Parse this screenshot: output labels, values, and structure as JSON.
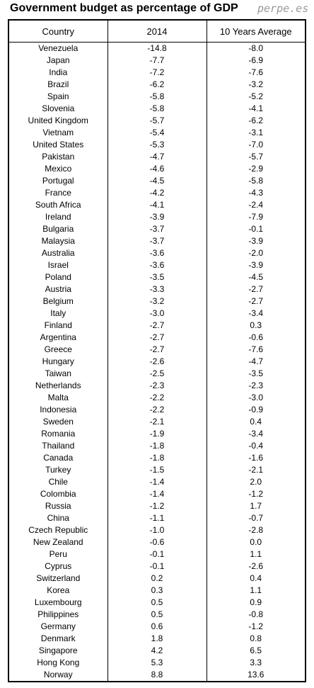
{
  "header": {
    "title": "Government budget as percentage of GDP",
    "watermark": "perpe.es"
  },
  "table": {
    "columns": [
      "Country",
      "2014",
      "10 Years Average"
    ],
    "rows": [
      [
        "Venezuela",
        "-14.8",
        "-8.0"
      ],
      [
        "Japan",
        "-7.7",
        "-6.9"
      ],
      [
        "India",
        "-7.2",
        "-7.6"
      ],
      [
        "Brazil",
        "-6.2",
        "-3.2"
      ],
      [
        "Spain",
        "-5.8",
        "-5.2"
      ],
      [
        "Slovenia",
        "-5.8",
        "-4.1"
      ],
      [
        "United Kingdom",
        "-5.7",
        "-6.2"
      ],
      [
        "Vietnam",
        "-5.4",
        "-3.1"
      ],
      [
        "United States",
        "-5.3",
        "-7.0"
      ],
      [
        "Pakistan",
        "-4.7",
        "-5.7"
      ],
      [
        "Mexico",
        "-4.6",
        "-2.9"
      ],
      [
        "Portugal",
        "-4.5",
        "-5.8"
      ],
      [
        "France",
        "-4.2",
        "-4.3"
      ],
      [
        "South Africa",
        "-4.1",
        "-2.4"
      ],
      [
        "Ireland",
        "-3.9",
        "-7.9"
      ],
      [
        "Bulgaria",
        "-3.7",
        "-0.1"
      ],
      [
        "Malaysia",
        "-3.7",
        "-3.9"
      ],
      [
        "Australia",
        "-3.6",
        "-2.0"
      ],
      [
        "Israel",
        "-3.6",
        "-3.9"
      ],
      [
        "Poland",
        "-3.5",
        "-4.5"
      ],
      [
        "Austria",
        "-3.3",
        "-2.7"
      ],
      [
        "Belgium",
        "-3.2",
        "-2.7"
      ],
      [
        "Italy",
        "-3.0",
        "-3.4"
      ],
      [
        "Finland",
        "-2.7",
        "0.3"
      ],
      [
        "Argentina",
        "-2.7",
        "-0.6"
      ],
      [
        "Greece",
        "-2.7",
        "-7.6"
      ],
      [
        "Hungary",
        "-2.6",
        "-4.7"
      ],
      [
        "Taiwan",
        "-2.5",
        "-3.5"
      ],
      [
        "Netherlands",
        "-2.3",
        "-2.3"
      ],
      [
        "Malta",
        "-2.2",
        "-3.0"
      ],
      [
        "Indonesia",
        "-2.2",
        "-0.9"
      ],
      [
        "Sweden",
        "-2.1",
        "0.4"
      ],
      [
        "Romania",
        "-1.9",
        "-3.4"
      ],
      [
        "Thailand",
        "-1.8",
        "-0.4"
      ],
      [
        "Canada",
        "-1.8",
        "-1.6"
      ],
      [
        "Turkey",
        "-1.5",
        "-2.1"
      ],
      [
        "Chile",
        "-1.4",
        "2.0"
      ],
      [
        "Colombia",
        "-1.4",
        "-1.2"
      ],
      [
        "Russia",
        "-1.2",
        "1.7"
      ],
      [
        "China",
        "-1.1",
        "-0.7"
      ],
      [
        "Czech Republic",
        "-1.0",
        "-2.8"
      ],
      [
        "New Zealand",
        "-0.6",
        "0.0"
      ],
      [
        "Peru",
        "-0.1",
        "1.1"
      ],
      [
        "Cyprus",
        "-0.1",
        "-2.6"
      ],
      [
        "Switzerland",
        "0.2",
        "0.4"
      ],
      [
        "Korea",
        "0.3",
        "1.1"
      ],
      [
        "Luxembourg",
        "0.5",
        "0.9"
      ],
      [
        "Philippines",
        "0.5",
        "-0.8"
      ],
      [
        "Germany",
        "0.6",
        "-1.2"
      ],
      [
        "Denmark",
        "1.8",
        "0.8"
      ],
      [
        "Singapore",
        "4.2",
        "6.5"
      ],
      [
        "Hong Kong",
        "5.3",
        "3.3"
      ],
      [
        "Norway",
        "8.8",
        "13.6"
      ]
    ]
  }
}
